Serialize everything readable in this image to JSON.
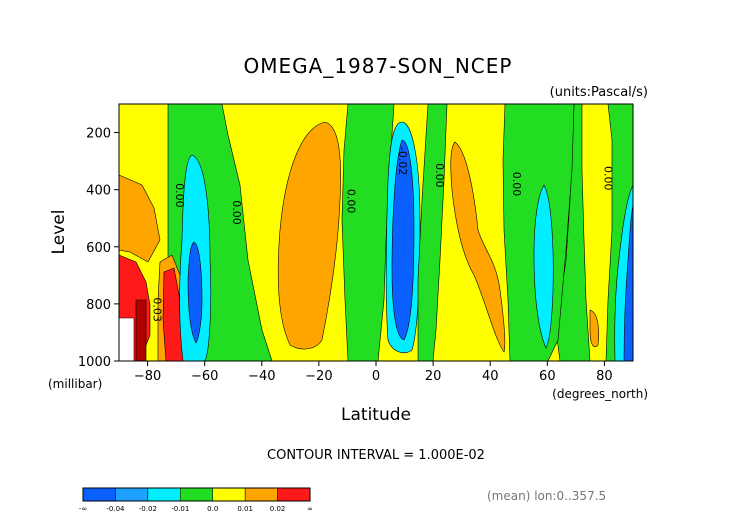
{
  "chart_data": {
    "type": "contour",
    "title": "OMEGA_1987-SON_NCEP",
    "units": "(units:Pascal/s)",
    "xlabel": "Latitude",
    "xunit": "(degrees_north)",
    "ylabel": "Level",
    "yunit": "(millibar)",
    "xlim": [
      -90,
      90
    ],
    "ylim": [
      1000,
      100
    ],
    "x_ticks": [
      -80,
      -60,
      -40,
      -20,
      0,
      20,
      40,
      60,
      80
    ],
    "y_ticks": [
      200,
      400,
      600,
      800,
      1000
    ],
    "footer": "CONTOUR INTERVAL = 1.000E-02",
    "note": "(mean) lon:0..357.5",
    "contour_labels": [
      {
        "lat": -70,
        "level": 420,
        "text": "0.00",
        "rot": 90
      },
      {
        "lat": -50,
        "level": 480,
        "text": "0.00",
        "rot": 90
      },
      {
        "lat": -10,
        "level": 440,
        "text": "0.00",
        "rot": 90
      },
      {
        "lat": 8,
        "level": 300,
        "text": "-0.02",
        "rot": 90
      },
      {
        "lat": 21,
        "level": 350,
        "text": "0.00",
        "rot": 90
      },
      {
        "lat": 48,
        "level": 380,
        "text": "0.00",
        "rot": 90
      },
      {
        "lat": 80,
        "level": 360,
        "text": "0.00",
        "rot": 90
      },
      {
        "lat": -78,
        "level": 820,
        "text": "0.03",
        "rot": 90
      }
    ],
    "colorbar": {
      "colors": [
        "#0a60ff",
        "#1da0ff",
        "#00eeff",
        "#22dd22",
        "#ffff00",
        "#ffa500",
        "#ff1a1a"
      ],
      "labels": [
        "-∞",
        "-0.04",
        "-0.02",
        "-0.01",
        "0.0",
        "0.01",
        "0.02",
        "∞"
      ]
    }
  }
}
